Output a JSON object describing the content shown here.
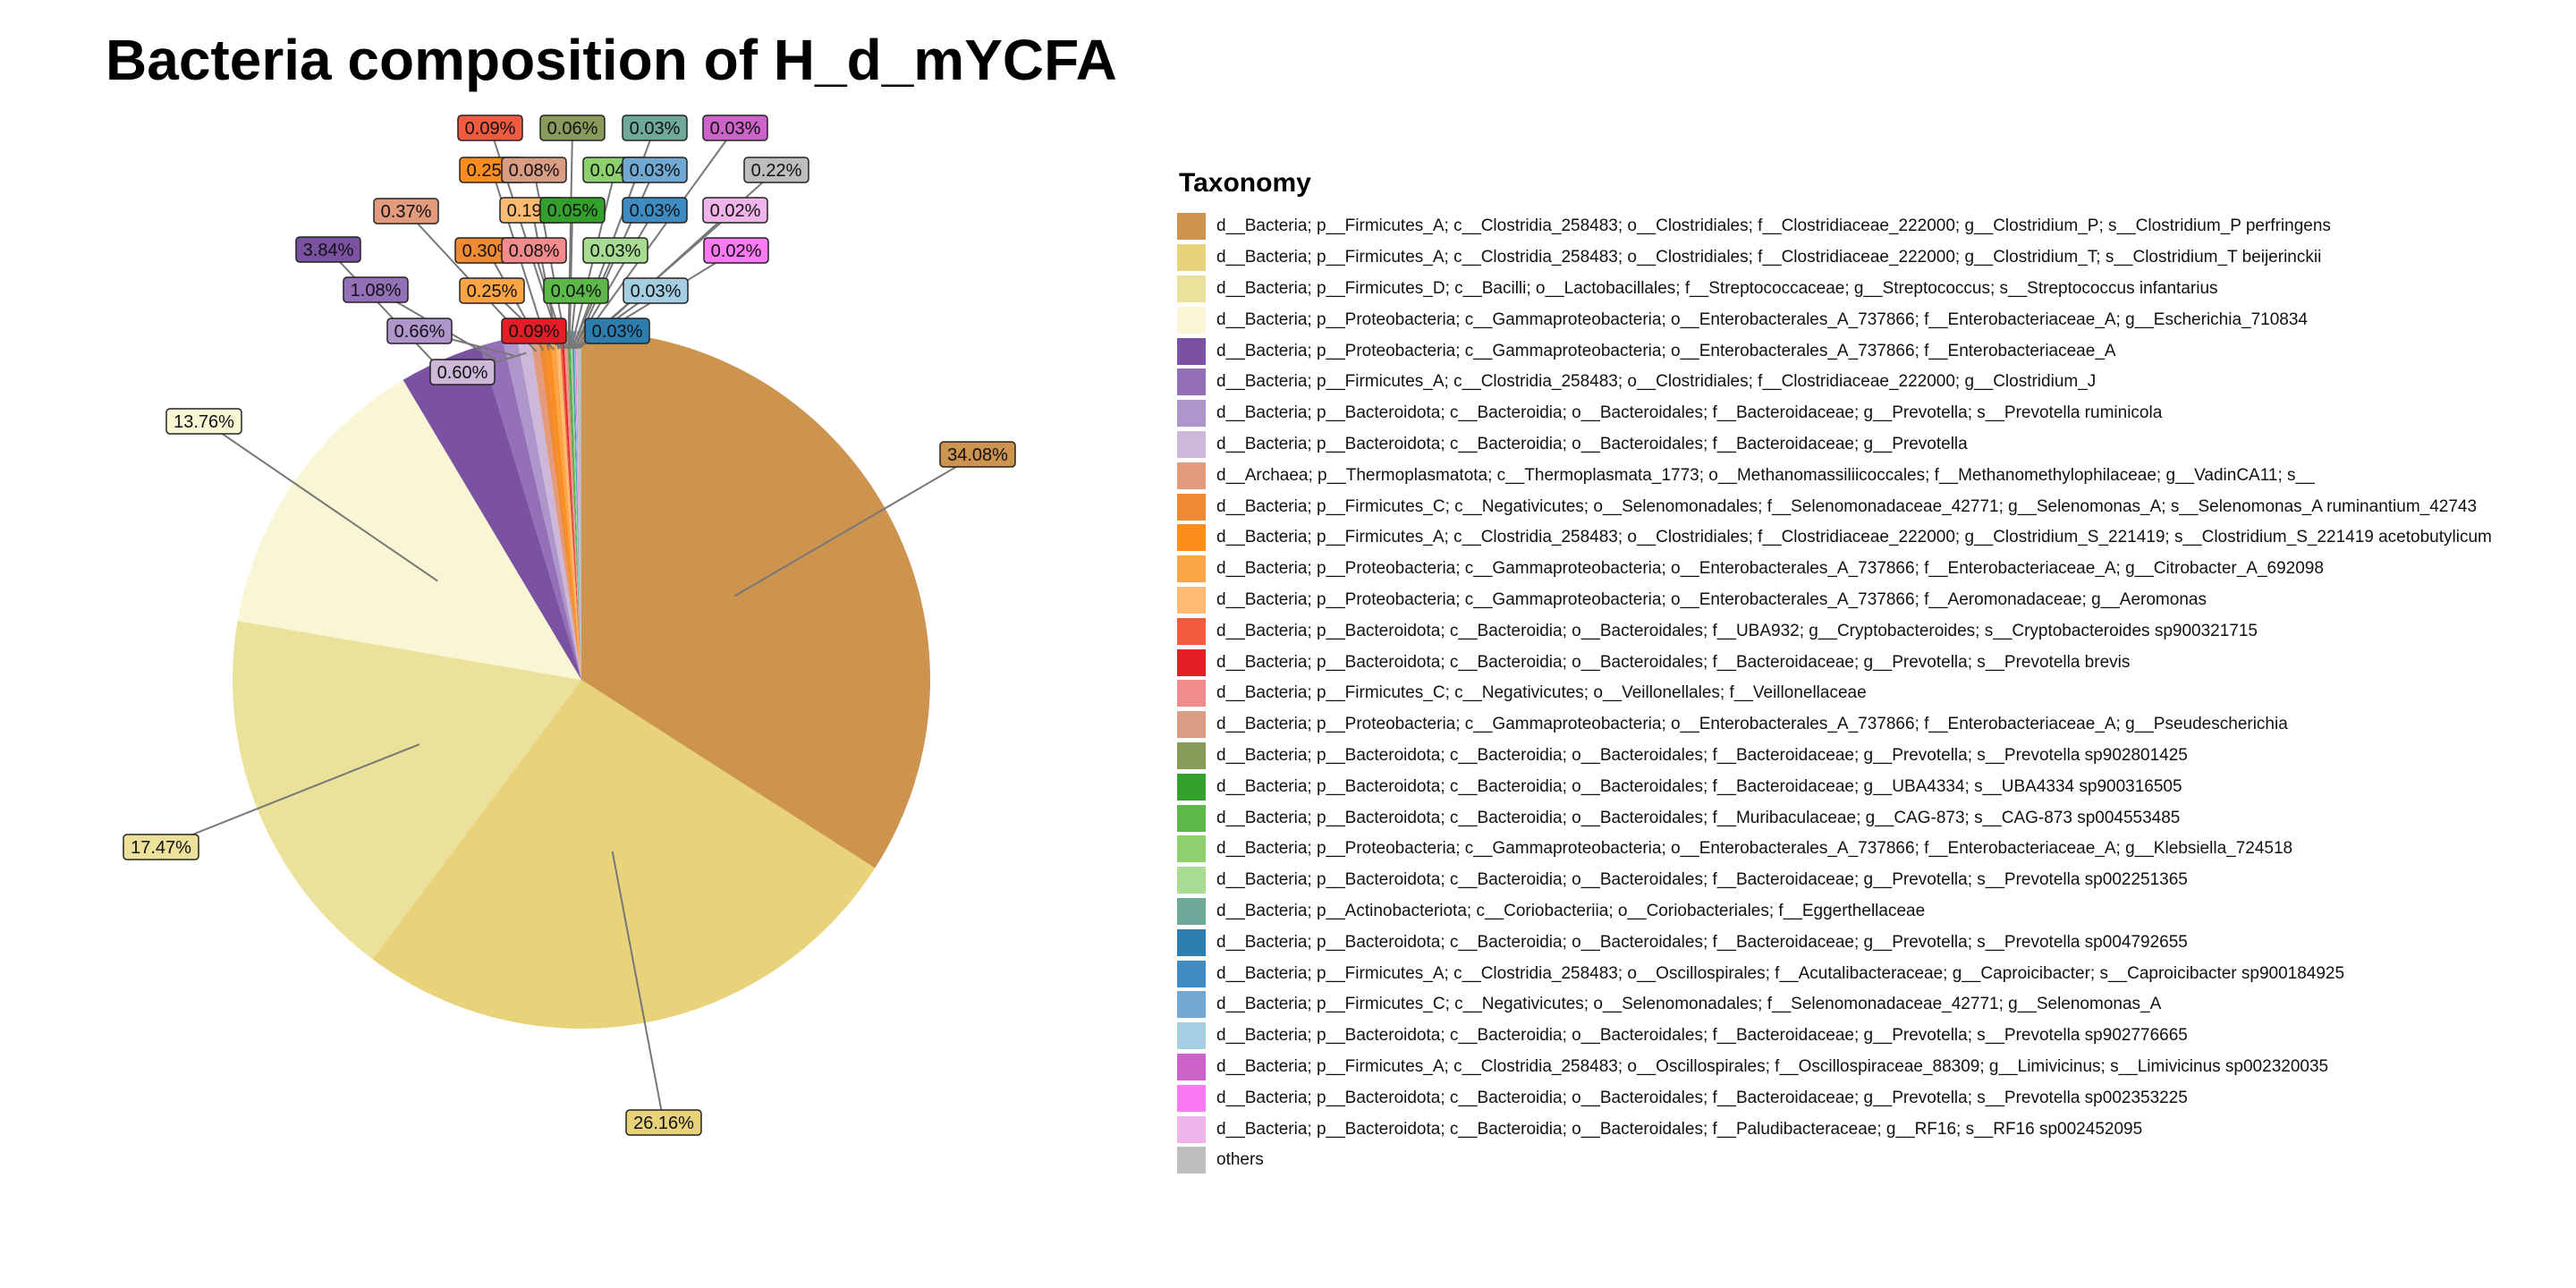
{
  "chart_data": {
    "type": "pie",
    "title": "Bacteria composition of H_d_mYCFA",
    "legend_title": "Taxonomy",
    "legend_position": "right",
    "slices": [
      {
        "label": "d__Bacteria; p__Firmicutes_A; c__Clostridia_258483; o__Clostridiales; f__Clostridiaceae_222000; g__Clostridium_P; s__Clostridium_P perfringens",
        "value": 34.08,
        "display": "34.08%",
        "color": "#CD9450"
      },
      {
        "label": "d__Bacteria; p__Firmicutes_A; c__Clostridia_258483; o__Clostridiales; f__Clostridiaceae_222000; g__Clostridium_T; s__Clostridium_T beijerinckii",
        "value": 26.16,
        "display": "26.16%",
        "color": "#E8D27A"
      },
      {
        "label": "d__Bacteria; p__Firmicutes_D; c__Bacilli; o__Lactobacillales; f__Streptococcaceae; g__Streptococcus; s__Streptococcus infantarius",
        "value": 17.47,
        "display": "17.47%",
        "color": "#EBE19B"
      },
      {
        "label": "d__Bacteria; p__Proteobacteria; c__Gammaproteobacteria; o__Enterobacterales_A_737866; f__Enterobacteriaceae_A; g__Escherichia_710834",
        "value": 13.76,
        "display": "13.76%",
        "color": "#F8F6D5"
      },
      {
        "label": "d__Bacteria; p__Proteobacteria; c__Gammaproteobacteria; o__Enterobacterales_A_737866; f__Enterobacteriaceae_A",
        "value": 3.84,
        "display": "3.84%",
        "color": "#7B52A1"
      },
      {
        "label": "d__Bacteria; p__Firmicutes_A; c__Clostridia_258483; o__Clostridiales; f__Clostridiaceae_222000; g__Clostridium_J",
        "value": 1.08,
        "display": "1.08%",
        "color": "#9370B8"
      },
      {
        "label": "d__Bacteria; p__Bacteroidota; c__Bacteroidia; o__Bacteroidales; f__Bacteroidaceae; g__Prevotella; s__Prevotella ruminicola",
        "value": 0.66,
        "display": "0.66%",
        "color": "#AE96CB"
      },
      {
        "label": "d__Bacteria; p__Bacteroidota; c__Bacteroidia; o__Bacteroidales; f__Bacteroidaceae; g__Prevotella",
        "value": 0.6,
        "display": "0.60%",
        "color": "#CDB8DA"
      },
      {
        "label": "d__Archaea; p__Thermoplasmatota; c__Thermoplasmata_1773; o__Methanomassiliicoccales; f__Methanomethylophilaceae; g__VadinCA11; s__",
        "value": 0.37,
        "display": "0.37%",
        "color": "#E29B7C"
      },
      {
        "label": "d__Bacteria; p__Firmicutes_C; c__Negativicutes; o__Selenomonadales; f__Selenomonadaceae_42771; g__Selenomonas_A; s__Selenomonas_A ruminantium_42743",
        "value": 0.3,
        "display": "0.30%",
        "color": "#F08A33"
      },
      {
        "label": "d__Bacteria; p__Firmicutes_A; c__Clostridia_258483; o__Clostridiales; f__Clostridiaceae_222000; g__Clostridium_S_221419; s__Clostridium_S_221419 acetobutylicum",
        "value": 0.25,
        "display": "0.25%",
        "color": "#FB8C1E"
      },
      {
        "label": "d__Bacteria; p__Proteobacteria; c__Gammaproteobacteria; o__Enterobacterales_A_737866; f__Enterobacteriaceae_A; g__Citrobacter_A_692098",
        "value": 0.25,
        "display": "0.25%",
        "color": "#FBA445"
      },
      {
        "label": "d__Bacteria; p__Proteobacteria; c__Gammaproteobacteria; o__Enterobacterales_A_737866; f__Aeromonadaceae; g__Aeromonas",
        "value": 0.19,
        "display": "0.19%",
        "color": "#FDBB71"
      },
      {
        "label": "d__Bacteria; p__Bacteroidota; c__Bacteroidia; o__Bacteroidales; f__UBA932; g__Cryptobacteroides; s__Cryptobacteroides sp900321715",
        "value": 0.09,
        "display": "0.09%",
        "color": "#F05A3E"
      },
      {
        "label": "d__Bacteria; p__Bacteroidota; c__Bacteroidia; o__Bacteroidales; f__Bacteroidaceae; g__Prevotella; s__Prevotella brevis",
        "value": 0.09,
        "display": "0.09%",
        "color": "#E31E26"
      },
      {
        "label": "d__Bacteria; p__Firmicutes_C; c__Negativicutes; o__Veillonellales; f__Veillonellaceae",
        "value": 0.08,
        "display": "0.08%",
        "color": "#F28C8C"
      },
      {
        "label": "d__Bacteria; p__Proteobacteria; c__Gammaproteobacteria; o__Enterobacterales_A_737866; f__Enterobacteriaceae_A; g__Pseudescherichia",
        "value": 0.08,
        "display": "0.08%",
        "color": "#D99C84"
      },
      {
        "label": "d__Bacteria; p__Bacteroidota; c__Bacteroidia; o__Bacteroidales; f__Bacteroidaceae; g__Prevotella; s__Prevotella sp902801425",
        "value": 0.06,
        "display": "0.06%",
        "color": "#889B5B"
      },
      {
        "label": "d__Bacteria; p__Bacteroidota; c__Bacteroidia; o__Bacteroidales; f__Bacteroidaceae; g__UBA4334; s__UBA4334 sp900316505",
        "value": 0.05,
        "display": "0.05%",
        "color": "#33A02C"
      },
      {
        "label": "d__Bacteria; p__Bacteroidota; c__Bacteroidia; o__Bacteroidales; f__Muribaculaceae; g__CAG-873; s__CAG-873 sp004553485",
        "value": 0.04,
        "display": "0.04%",
        "color": "#5DB84A"
      },
      {
        "label": "d__Bacteria; p__Proteobacteria; c__Gammaproteobacteria; o__Enterobacterales_A_737866; f__Enterobacteriaceae_A; g__Klebsiella_724518",
        "value": 0.04,
        "display": "0.04%",
        "color": "#8DD16E"
      },
      {
        "label": "d__Bacteria; p__Bacteroidota; c__Bacteroidia; o__Bacteroidales; f__Bacteroidaceae; g__Prevotella; s__Prevotella sp002251365",
        "value": 0.03,
        "display": "0.03%",
        "color": "#A9DC93"
      },
      {
        "label": "d__Bacteria; p__Actinobacteriota; c__Coriobacteriia; o__Coriobacteriales; f__Eggerthellaceae",
        "value": 0.03,
        "display": "0.03%",
        "color": "#6FA99A"
      },
      {
        "label": "d__Bacteria; p__Bacteroidota; c__Bacteroidia; o__Bacteroidales; f__Bacteroidaceae; g__Prevotella; s__Prevotella sp004792655",
        "value": 0.03,
        "display": "0.03%",
        "color": "#2E7DAF"
      },
      {
        "label": "d__Bacteria; p__Firmicutes_A; c__Clostridia_258483; o__Oscillospirales; f__Acutalibacteraceae; g__Caproicibacter; s__Caproicibacter sp900184925",
        "value": 0.03,
        "display": "0.03%",
        "color": "#3E8CC2"
      },
      {
        "label": "d__Bacteria; p__Firmicutes_C; c__Negativicutes; o__Selenomonadales; f__Selenomonadaceae_42771; g__Selenomonas_A",
        "value": 0.03,
        "display": "0.03%",
        "color": "#72A9D3"
      },
      {
        "label": "d__Bacteria; p__Bacteroidota; c__Bacteroidia; o__Bacteroidales; f__Bacteroidaceae; g__Prevotella; s__Prevotella sp902776665",
        "value": 0.03,
        "display": "0.03%",
        "color": "#A6CEE3"
      },
      {
        "label": "d__Bacteria; p__Firmicutes_A; c__Clostridia_258483; o__Oscillospirales; f__Oscillospiraceae_88309; g__Limivicinus; s__Limivicinus sp002320035",
        "value": 0.03,
        "display": "0.03%",
        "color": "#CB63C8"
      },
      {
        "label": "d__Bacteria; p__Bacteroidota; c__Bacteroidia; o__Bacteroidales; f__Bacteroidaceae; g__Prevotella; s__Prevotella sp002353225",
        "value": 0.02,
        "display": "0.02%",
        "color": "#F97AF2"
      },
      {
        "label": "d__Bacteria; p__Bacteroidota; c__Bacteroidia; o__Bacteroidales; f__Paludibacteraceae; g__RF16; s__RF16 sp002452095",
        "value": 0.02,
        "display": "0.02%",
        "color": "#EFB5EA"
      },
      {
        "label": "others",
        "value": 0.22,
        "display": "0.22%",
        "color": "#BDBDBD"
      }
    ]
  }
}
